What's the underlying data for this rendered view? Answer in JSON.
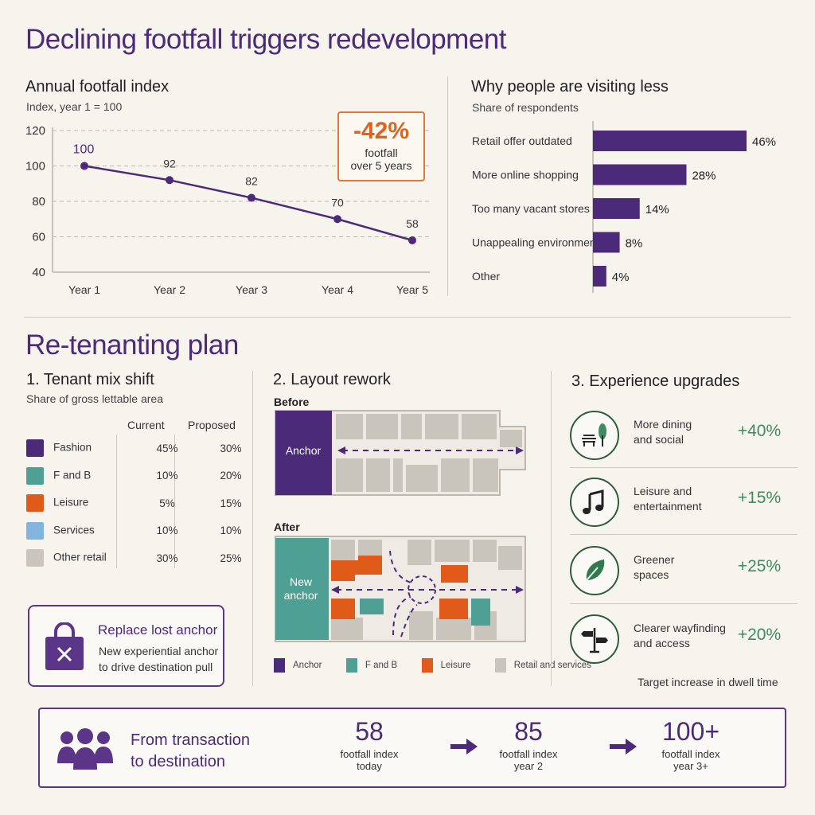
{
  "title": "Declining footfall triggers redevelopment",
  "colors": {
    "purple": "#4b2a7a",
    "orange": "#e05a1a",
    "teal": "#4e9f94",
    "blue": "#82b4e0",
    "grey": "#c9c4bc",
    "green": "#3f8a62"
  },
  "chart_data": [
    {
      "type": "line",
      "title": "Annual footfall index",
      "subtitle": "Index, year 1 = 100",
      "categories": [
        "Year 1",
        "Year 2",
        "Year 3",
        "Year 4",
        "Year 5"
      ],
      "values": [
        100,
        92,
        82,
        70,
        58
      ],
      "ylim": [
        40,
        120
      ],
      "yticks": [
        40,
        60,
        80,
        100,
        120
      ],
      "grid": true
    },
    {
      "type": "bar",
      "title": "Why people are visiting less",
      "subtitle": "Share of respondents",
      "categories": [
        "Retail offer outdated",
        "More online shopping",
        "Too many vacant stores",
        "Unappealing environment",
        "Other"
      ],
      "values": [
        46,
        28,
        14,
        8,
        4
      ],
      "value_labels": [
        "46%",
        "28%",
        "14%",
        "8%",
        "4%"
      ],
      "orientation": "horizontal"
    },
    {
      "type": "table",
      "title": "1. Tenant mix shift",
      "subtitle": "Share of gross lettable area",
      "columns": [
        "Current",
        "Proposed"
      ],
      "rows": [
        {
          "label": "Fashion",
          "color": "#4b2a7a",
          "current": "45%",
          "proposed": "30%"
        },
        {
          "label": "F and B",
          "color": "#4e9f94",
          "current": "10%",
          "proposed": "20%"
        },
        {
          "label": "Leisure",
          "color": "#e05a1a",
          "current": "5%",
          "proposed": "15%"
        },
        {
          "label": "Services",
          "color": "#82b4e0",
          "current": "10%",
          "proposed": "10%"
        },
        {
          "label": "Other retail",
          "color": "#c9c4bc",
          "current": "30%",
          "proposed": "25%"
        }
      ]
    }
  ],
  "kpi": {
    "value": "-42%",
    "line1": "footfall",
    "line2": "over 5 years"
  },
  "plan": {
    "title": "Re-tenanting plan"
  },
  "anchor_card": {
    "title": "Replace lost anchor",
    "line1": "New experiential anchor",
    "line2": "to drive destination pull"
  },
  "layout": {
    "title": "2. Layout rework",
    "before_label": "Before",
    "after_label": "After",
    "anchor_label": "Anchor",
    "new_anchor_line1": "New",
    "new_anchor_line2": "anchor",
    "legend": [
      {
        "label": "Anchor",
        "color": "#4b2a7a"
      },
      {
        "label": "F and B",
        "color": "#4e9f94"
      },
      {
        "label": "Leisure",
        "color": "#e05a1a"
      },
      {
        "label": "Retail and services",
        "color": "#c9c4bc"
      }
    ]
  },
  "experience": {
    "title": "3. Experience upgrades",
    "items": [
      {
        "icon": "bench-tree-icon",
        "line1": "More dining",
        "line2": "and social",
        "value": "+40%"
      },
      {
        "icon": "music-note-icon",
        "line1": "Leisure and",
        "line2": "entertainment",
        "value": "+15%"
      },
      {
        "icon": "leaf-icon",
        "line1": "Greener",
        "line2": "spaces",
        "value": "+25%"
      },
      {
        "icon": "signpost-icon",
        "line1": "Clearer wayfinding",
        "line2": "and access",
        "value": "+20%"
      }
    ],
    "footnote": "Target increase in dwell time"
  },
  "banner": {
    "line1": "From transaction",
    "line2": "to destination",
    "steps": [
      {
        "value": "58",
        "line1": "footfall index",
        "line2": "today"
      },
      {
        "value": "85",
        "line1": "footfall index",
        "line2": "year 2"
      },
      {
        "value": "100+",
        "line1": "footfall index",
        "line2": "year 3+"
      }
    ]
  }
}
